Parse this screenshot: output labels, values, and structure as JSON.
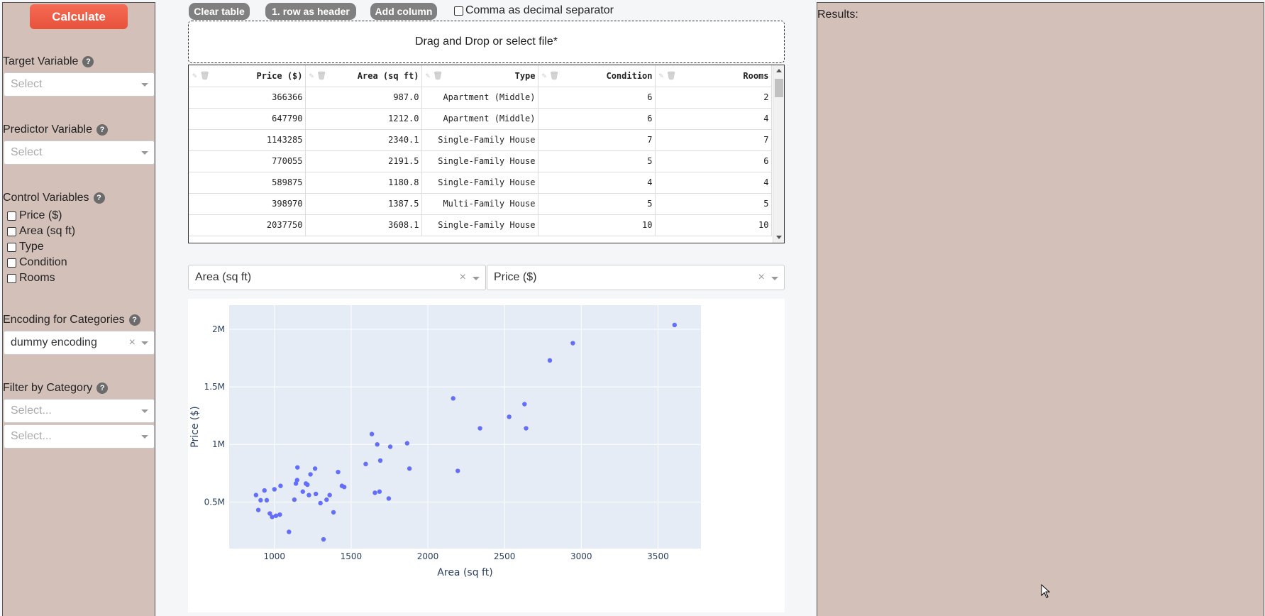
{
  "sidebar": {
    "calculate_label": "Calculate",
    "target_variable": {
      "label": "Target Variable",
      "placeholder": "Select"
    },
    "predictor_variable": {
      "label": "Predictor Variable",
      "placeholder": "Select"
    },
    "control_variables": {
      "label": "Control Variables",
      "options": [
        "Price ($)",
        "Area (sq ft)",
        "Type",
        "Condition",
        "Rooms"
      ]
    },
    "encoding": {
      "label": "Encoding for Categories",
      "value": "dummy encoding"
    },
    "filter": {
      "label": "Filter by Category",
      "placeholder1": "Select...",
      "placeholder2": "Select..."
    },
    "help_glyph": "?"
  },
  "toolbar": {
    "clear_table": "Clear table",
    "row_as_header": "1. row as header",
    "add_column": "Add column",
    "comma_decimal": "Comma as decimal separator"
  },
  "dropzone": {
    "text": "Drag and Drop or select file*"
  },
  "table": {
    "columns": [
      "Price ($)",
      "Area (sq ft)",
      "Type",
      "Condition",
      "Rooms"
    ],
    "rows": [
      [
        "366366",
        "987.0",
        "Apartment (Middle)",
        "6",
        "2"
      ],
      [
        "647790",
        "1212.0",
        "Apartment (Middle)",
        "6",
        "4"
      ],
      [
        "1143285",
        "2340.1",
        "Single-Family House",
        "7",
        "7"
      ],
      [
        "770055",
        "2191.5",
        "Single-Family House",
        "5",
        "6"
      ],
      [
        "589875",
        "1180.8",
        "Single-Family House",
        "4",
        "4"
      ],
      [
        "398970",
        "1387.5",
        "Multi-Family House",
        "5",
        "5"
      ],
      [
        "2037750",
        "3608.1",
        "Single-Family House",
        "10",
        "10"
      ]
    ]
  },
  "axis_selects": {
    "x_value": "Area (sq ft)",
    "y_value": "Price ($)"
  },
  "chart_data": {
    "type": "scatter",
    "xlabel": "Area (sq ft)",
    "ylabel": "Price ($)",
    "xlim": [
      705,
      3780
    ],
    "ylim": [
      95000,
      2210000
    ],
    "x_ticks": [
      1000,
      1500,
      2000,
      2500,
      3000,
      3500
    ],
    "x_tick_labels": [
      "1000",
      "1500",
      "2000",
      "2500",
      "3000",
      "3500"
    ],
    "y_ticks": [
      500000,
      1000000,
      1500000,
      2000000
    ],
    "y_tick_labels": [
      "0.5M",
      "1M",
      "1.5M",
      "2M"
    ],
    "color": "#636efa",
    "grid": true,
    "points": [
      [
        880,
        560000
      ],
      [
        895,
        430000
      ],
      [
        910,
        515000
      ],
      [
        935,
        600000
      ],
      [
        950,
        515000
      ],
      [
        970,
        400000
      ],
      [
        985,
        370000
      ],
      [
        1000,
        610000
      ],
      [
        1010,
        380000
      ],
      [
        1035,
        390000
      ],
      [
        1040,
        640000
      ],
      [
        1095,
        240000
      ],
      [
        1130,
        520000
      ],
      [
        1140,
        660000
      ],
      [
        1148,
        690000
      ],
      [
        1150,
        800000
      ],
      [
        1185,
        590000
      ],
      [
        1205,
        660000
      ],
      [
        1215,
        650000
      ],
      [
        1225,
        560000
      ],
      [
        1235,
        740000
      ],
      [
        1265,
        790000
      ],
      [
        1270,
        570000
      ],
      [
        1300,
        490000
      ],
      [
        1320,
        175000
      ],
      [
        1340,
        520000
      ],
      [
        1360,
        560000
      ],
      [
        1385,
        410000
      ],
      [
        1415,
        760000
      ],
      [
        1440,
        640000
      ],
      [
        1455,
        630000
      ],
      [
        1595,
        830000
      ],
      [
        1635,
        1090000
      ],
      [
        1655,
        580000
      ],
      [
        1670,
        1000000
      ],
      [
        1685,
        590000
      ],
      [
        1690,
        860000
      ],
      [
        1745,
        530000
      ],
      [
        1755,
        980000
      ],
      [
        1865,
        1010000
      ],
      [
        1880,
        790000
      ],
      [
        2165,
        1400000
      ],
      [
        2195,
        770000
      ],
      [
        2340,
        1140000
      ],
      [
        2530,
        1240000
      ],
      [
        2630,
        1350000
      ],
      [
        2640,
        1140000
      ],
      [
        2795,
        1730000
      ],
      [
        2945,
        1880000
      ],
      [
        3608,
        2037750
      ]
    ]
  },
  "results": {
    "label": "Results:"
  },
  "colors": {
    "panel": "#d3c0b9",
    "accent": "#f46b55",
    "plot_bg": "#e5ecf6",
    "point": "#636efa"
  },
  "icons": [
    "pencil-icon",
    "trash-icon",
    "help-icon",
    "close-icon",
    "chevron-down-icon",
    "mouse-cursor-icon"
  ]
}
